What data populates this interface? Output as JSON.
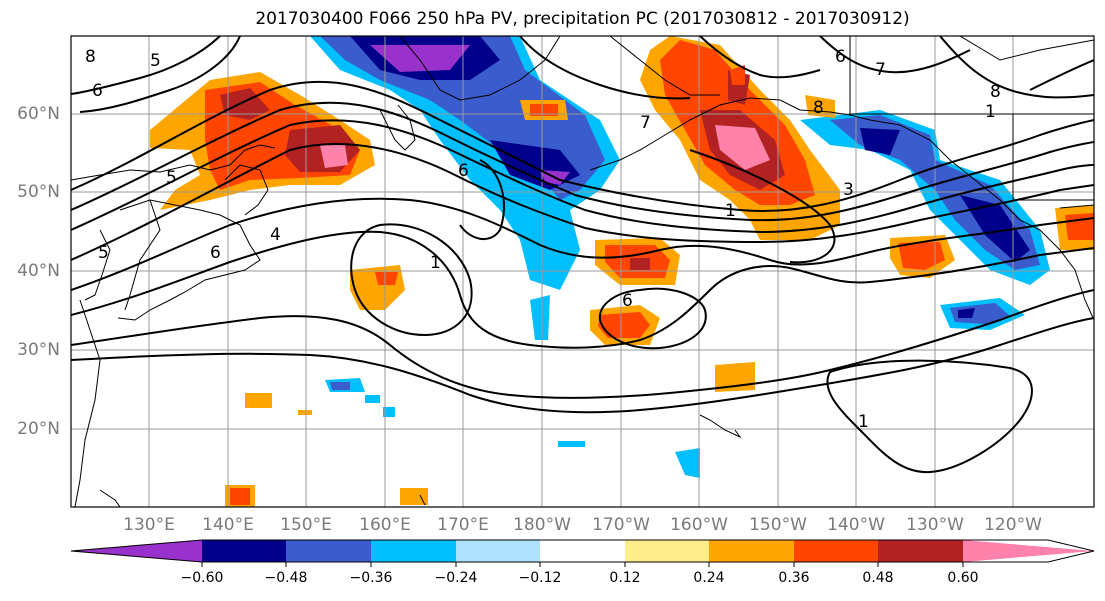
{
  "title": "2017030400 F066 250 hPa PV, precipitation PC (2017030812 - 2017030912)",
  "lat_labels": [
    "60°N",
    "50°N",
    "40°N",
    "30°N",
    "20°N"
  ],
  "lon_labels": [
    "130°E",
    "140°E",
    "150°E",
    "160°E",
    "170°E",
    "180°W",
    "170°W",
    "160°W",
    "150°W",
    "140°W",
    "130°W",
    "120°W"
  ],
  "contour_labels": [
    "8",
    "6",
    "5",
    "5",
    "5",
    "4",
    "6",
    "1",
    "1",
    "6",
    "6",
    "7",
    "8",
    "1",
    "3",
    "1",
    "6",
    "7",
    "8"
  ],
  "colorbar": {
    "colors": [
      "#9932cc",
      "#00008b",
      "#3a5ccc",
      "#00bfff",
      "#b0e2ff",
      "#ffffff",
      "#ffec8b",
      "#ffa500",
      "#ff4500",
      "#b22222",
      "#ff82ab"
    ],
    "tick_labels": [
      "−0.60",
      "−0.48",
      "−0.36",
      "−0.24",
      "−0.12",
      "0.12",
      "0.24",
      "0.36",
      "0.48",
      "0.60"
    ]
  }
}
